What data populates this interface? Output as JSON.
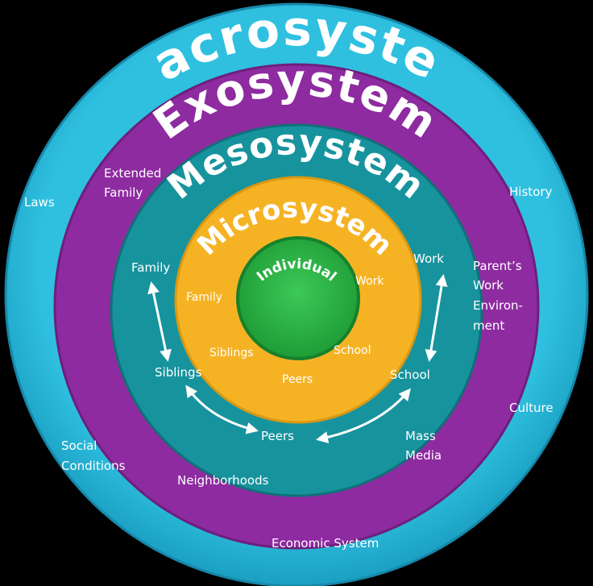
{
  "colors": {
    "background": "#000000",
    "macro": "#29b6d6",
    "exo": "#8e2ba0",
    "meso": "#17939e",
    "micro": "#f5b324",
    "individual": "#2cb544",
    "text": "#ffffff"
  },
  "rings": {
    "macro": "Macrosystem",
    "exo": "Exosystem",
    "meso": "Mesosystem",
    "micro": "Microsystem",
    "individual": "Individual"
  },
  "macro_labels": {
    "laws": "Laws",
    "history": "History",
    "culture": "Culture",
    "social_1": "Social",
    "social_2": "Conditions",
    "economic": "Economic System"
  },
  "exo_labels": {
    "extended_1": "Extended",
    "extended_2": "Family",
    "parents_1": "Parent’s",
    "parents_2": "Work",
    "parents_3": "Environ-",
    "parents_4": "ment",
    "mass_1": "Mass",
    "mass_2": "Media",
    "neighborhoods": "Neighborhoods"
  },
  "meso_labels": {
    "family": "Family",
    "work": "Work",
    "siblings": "Siblings",
    "school": "School",
    "peers": "Peers"
  },
  "micro_labels": {
    "family": "Family",
    "work": "Work",
    "siblings": "Siblings",
    "school": "School",
    "peers": "Peers"
  }
}
